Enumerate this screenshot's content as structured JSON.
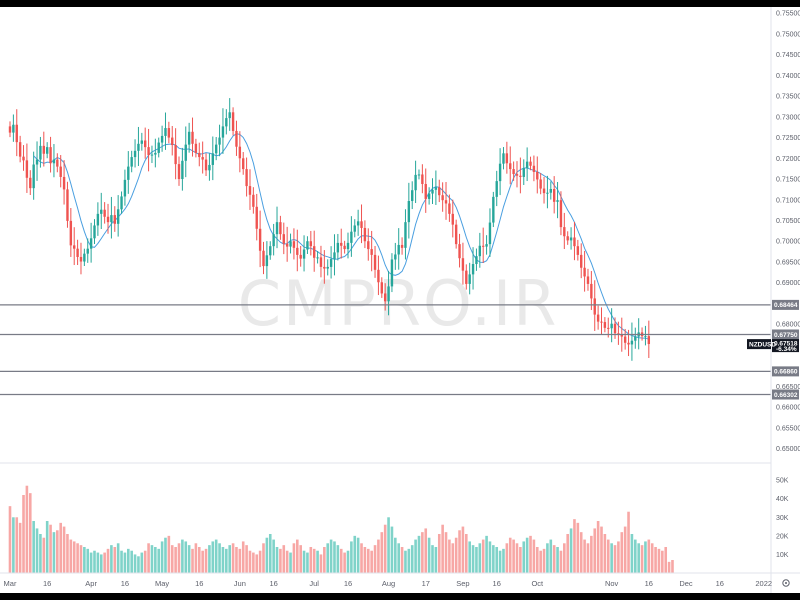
{
  "watermark": "CMPRO.IR",
  "symbol_tag": "NZDUSD",
  "colors": {
    "up": "#26a69a",
    "down": "#ef5350",
    "up_vol": "#7fd3c9",
    "down_vol": "#f7a7a5",
    "ma": "#4a9fe0",
    "hline": "#787b86",
    "tag_dark": "#131722",
    "tag_grey": "#787b86"
  },
  "price_axis": {
    "ticks": [
      "0.75500",
      "0.75000",
      "0.74500",
      "0.74000",
      "0.73500",
      "0.73000",
      "0.72500",
      "0.72000",
      "0.71500",
      "0.71000",
      "0.70500",
      "0.70000",
      "0.69500",
      "0.69000",
      "0.68000",
      "0.66500",
      "0.66000",
      "0.65500",
      "0.65000"
    ],
    "tick_values": [
      0.755,
      0.75,
      0.745,
      0.74,
      0.735,
      0.73,
      0.725,
      0.72,
      0.715,
      0.71,
      0.705,
      0.7,
      0.695,
      0.69,
      0.68,
      0.665,
      0.66,
      0.655,
      0.65
    ],
    "range": [
      0.6465,
      0.7565
    ]
  },
  "horizontal_levels": [
    {
      "value": 0.68464,
      "label": "0.68464"
    },
    {
      "value": 0.6775,
      "label": "0.67750"
    },
    {
      "value": 0.6686,
      "label": "0.66860"
    },
    {
      "value": 0.66302,
      "label": "0.66302"
    }
  ],
  "last_price": {
    "value": 0.67518,
    "label": "0.67518",
    "change": "-6.34%"
  },
  "volume_axis": {
    "ticks": [
      "50K",
      "40K",
      "30K",
      "20K",
      "10K"
    ],
    "tick_values": [
      50000,
      40000,
      30000,
      20000,
      10000
    ],
    "max": 56000
  },
  "time_axis": {
    "labels": [
      {
        "text": "Mar",
        "index": 0
      },
      {
        "text": "16",
        "index": 11
      },
      {
        "text": "Apr",
        "index": 24
      },
      {
        "text": "16",
        "index": 34
      },
      {
        "text": "May",
        "index": 45
      },
      {
        "text": "16",
        "index": 56
      },
      {
        "text": "Jun",
        "index": 68
      },
      {
        "text": "16",
        "index": 78
      },
      {
        "text": "Jul",
        "index": 90
      },
      {
        "text": "16",
        "index": 100
      },
      {
        "text": "Aug",
        "index": 112
      },
      {
        "text": "17",
        "index": 123
      },
      {
        "text": "Sep",
        "index": 134
      },
      {
        "text": "16",
        "index": 144
      },
      {
        "text": "Oct",
        "index": 156
      },
      {
        "text": "Nov",
        "index": 178
      },
      {
        "text": "16",
        "index": 189
      },
      {
        "text": "Dec",
        "index": 200
      },
      {
        "text": "16",
        "index": 210
      },
      {
        "text": "2022",
        "index": 223
      }
    ]
  },
  "chart_data": {
    "type": "candlestick",
    "symbol": "NZDUSD",
    "interval": "daily",
    "first_date": "2021-03-01",
    "series": [
      {
        "name": "NZDUSD",
        "close": [
          0.7262,
          0.7281,
          0.7239,
          0.7204,
          0.7195,
          0.7153,
          0.7128,
          0.7185,
          0.7197,
          0.723,
          0.7211,
          0.7227,
          0.7188,
          0.7197,
          0.718,
          0.7155,
          0.7125,
          0.7049,
          0.699,
          0.6982,
          0.6962,
          0.6951,
          0.697,
          0.6982,
          0.7007,
          0.7038,
          0.7066,
          0.7076,
          0.7059,
          0.7046,
          0.7063,
          0.7042,
          0.7077,
          0.7108,
          0.7148,
          0.718,
          0.7203,
          0.7218,
          0.7235,
          0.7243,
          0.7227,
          0.7208,
          0.7209,
          0.7213,
          0.7238,
          0.7254,
          0.7273,
          0.725,
          0.7232,
          0.7186,
          0.715,
          0.7194,
          0.7233,
          0.7264,
          0.7235,
          0.7213,
          0.7203,
          0.7197,
          0.7171,
          0.7184,
          0.7212,
          0.7233,
          0.725,
          0.7277,
          0.7297,
          0.7311,
          0.7266,
          0.7228,
          0.72,
          0.7174,
          0.7133,
          0.7112,
          0.7083,
          0.703,
          0.6977,
          0.694,
          0.6966,
          0.6988,
          0.7017,
          0.7046,
          0.7017,
          0.6994,
          0.6987,
          0.7,
          0.6984,
          0.6967,
          0.6958,
          0.698,
          0.7,
          0.6988,
          0.696,
          0.6961,
          0.6938,
          0.6934,
          0.6938,
          0.6957,
          0.6973,
          0.6996,
          0.6989,
          0.6981,
          0.6996,
          0.7023,
          0.7038,
          0.7048,
          0.7032,
          0.7,
          0.6981,
          0.6967,
          0.6931,
          0.6901,
          0.6874,
          0.6855,
          0.6891,
          0.6956,
          0.6968,
          0.6991,
          0.6984,
          0.7046,
          0.7097,
          0.7123,
          0.716,
          0.7161,
          0.7138,
          0.7102,
          0.7115,
          0.7124,
          0.713,
          0.7111,
          0.7099,
          0.7091,
          0.7066,
          0.704,
          0.6993,
          0.6959,
          0.6929,
          0.6897,
          0.692,
          0.6945,
          0.6964,
          0.6989,
          0.6987,
          0.6993,
          0.7045,
          0.7107,
          0.7145,
          0.7187,
          0.7212,
          0.7188,
          0.7174,
          0.7162,
          0.7158,
          0.7155,
          0.7176,
          0.7192,
          0.7182,
          0.7167,
          0.7149,
          0.7127,
          0.7116,
          0.7117,
          0.7126,
          0.7095,
          0.7099,
          0.7034,
          0.7012,
          0.7002,
          0.7009,
          0.6988,
          0.6967,
          0.6936,
          0.6915,
          0.6897,
          0.6862,
          0.6823,
          0.6806,
          0.6805,
          0.6791,
          0.679,
          0.6801,
          0.6778,
          0.6775,
          0.677,
          0.6755,
          0.6751,
          0.676,
          0.677,
          0.678,
          0.6771,
          0.6771,
          0.6752
        ],
        "open": [
          0.7277,
          0.7262,
          0.7281,
          0.7239,
          0.7204,
          0.7195,
          0.7153,
          0.7128,
          0.7185,
          0.7197,
          0.723,
          0.7211,
          0.7227,
          0.7188,
          0.7197,
          0.718,
          0.7155,
          0.7125,
          0.7049,
          0.699,
          0.6982,
          0.6962,
          0.6951,
          0.697,
          0.6982,
          0.7007,
          0.7038,
          0.7066,
          0.7076,
          0.7059,
          0.7046,
          0.7063,
          0.7042,
          0.7077,
          0.7108,
          0.7148,
          0.718,
          0.7203,
          0.7218,
          0.7235,
          0.7243,
          0.7227,
          0.7208,
          0.7209,
          0.7213,
          0.7238,
          0.7254,
          0.7273,
          0.725,
          0.7232,
          0.7186,
          0.715,
          0.7194,
          0.7233,
          0.7264,
          0.7235,
          0.7213,
          0.7203,
          0.7197,
          0.7171,
          0.7184,
          0.7212,
          0.7233,
          0.725,
          0.7277,
          0.7297,
          0.7311,
          0.7266,
          0.7228,
          0.72,
          0.7174,
          0.7133,
          0.7112,
          0.7083,
          0.703,
          0.6977,
          0.694,
          0.6966,
          0.6988,
          0.7017,
          0.7046,
          0.7017,
          0.6994,
          0.6987,
          0.7,
          0.6984,
          0.6967,
          0.6958,
          0.698,
          0.7,
          0.6988,
          0.696,
          0.6961,
          0.6938,
          0.6934,
          0.6938,
          0.6957,
          0.6973,
          0.6996,
          0.6989,
          0.6981,
          0.6996,
          0.7023,
          0.7038,
          0.7048,
          0.7032,
          0.7,
          0.6981,
          0.6967,
          0.6931,
          0.6901,
          0.6874,
          0.6855,
          0.6891,
          0.6956,
          0.6968,
          0.6991,
          0.6984,
          0.7046,
          0.7097,
          0.7123,
          0.716,
          0.7161,
          0.7138,
          0.7102,
          0.7115,
          0.7124,
          0.713,
          0.7111,
          0.7099,
          0.7091,
          0.7066,
          0.704,
          0.6993,
          0.6959,
          0.6929,
          0.6897,
          0.692,
          0.6945,
          0.6964,
          0.6989,
          0.6987,
          0.6993,
          0.7045,
          0.7107,
          0.7145,
          0.7187,
          0.7212,
          0.7188,
          0.7174,
          0.7162,
          0.7158,
          0.7155,
          0.7176,
          0.7192,
          0.7182,
          0.7167,
          0.7149,
          0.7127,
          0.7116,
          0.7117,
          0.7126,
          0.7095,
          0.7099,
          0.7034,
          0.7012,
          0.7002,
          0.7009,
          0.6988,
          0.6967,
          0.6936,
          0.6915,
          0.6897,
          0.6862,
          0.6823,
          0.6806,
          0.6805,
          0.6791,
          0.679,
          0.6801,
          0.6778,
          0.6775,
          0.677,
          0.6755,
          0.6751,
          0.676,
          0.677,
          0.678,
          0.6771,
          0.6771
        ]
      }
    ],
    "volume": [
      36,
      30,
      30,
      27,
      42,
      47,
      43,
      28,
      24,
      21,
      19,
      28,
      26,
      22,
      23,
      27,
      25,
      21,
      18,
      17,
      16,
      15,
      14,
      13,
      11,
      12,
      11,
      10,
      11,
      13,
      15,
      14,
      16,
      12,
      11,
      13,
      12,
      10,
      9,
      11,
      12,
      16,
      15,
      14,
      13,
      17,
      19,
      20,
      15,
      14,
      16,
      18,
      17,
      15,
      13,
      16,
      14,
      12,
      13,
      15,
      17,
      18,
      16,
      14,
      13,
      15,
      16,
      14,
      13,
      17,
      15,
      12,
      11,
      10,
      12,
      16,
      19,
      21,
      18,
      14,
      13,
      15,
      12,
      11,
      16,
      18,
      15,
      12,
      11,
      14,
      13,
      12,
      10,
      14,
      16,
      18,
      17,
      15,
      13,
      11,
      12,
      17,
      20,
      19,
      16,
      14,
      13,
      12,
      15,
      18,
      22,
      26,
      30,
      25,
      19,
      16,
      14,
      12,
      13,
      15,
      18,
      20,
      22,
      24,
      19,
      15,
      14,
      21,
      26,
      22,
      18,
      16,
      19,
      23,
      25,
      21,
      17,
      15,
      14,
      16,
      18,
      20,
      17,
      15,
      14,
      12,
      13,
      16,
      19,
      18,
      16,
      14,
      17,
      19,
      20,
      18,
      14,
      12,
      13,
      16,
      18,
      15,
      14,
      12,
      16,
      21,
      24,
      29,
      27,
      22,
      18,
      16,
      20,
      24,
      28,
      25,
      21,
      18,
      16,
      15,
      17,
      22,
      25,
      33,
      21,
      18,
      16,
      15,
      17,
      18,
      16,
      14,
      13,
      12,
      14,
      6,
      7
    ],
    "ylim": [
      0.6465,
      0.7565
    ]
  }
}
